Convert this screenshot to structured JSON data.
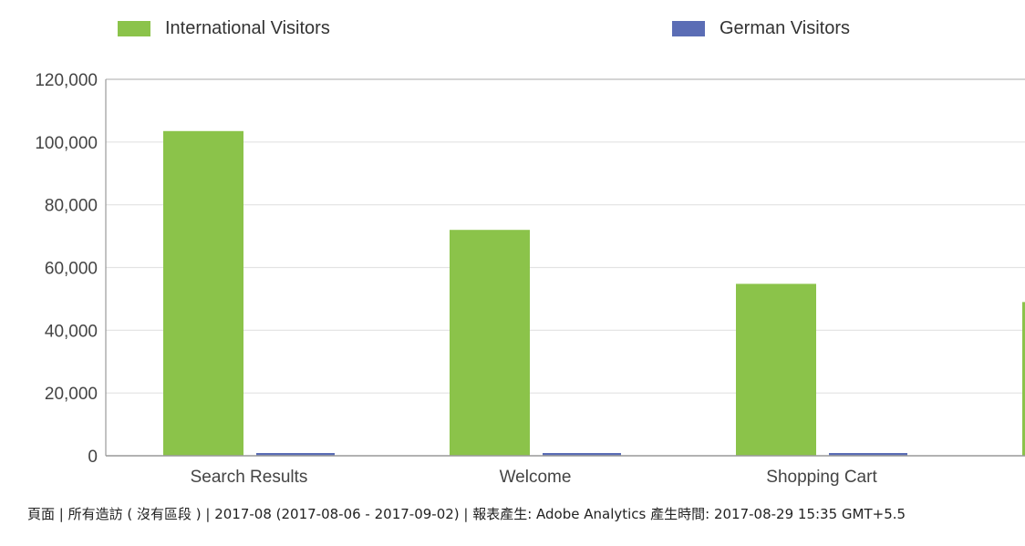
{
  "chart_data": {
    "type": "bar",
    "categories": [
      "Search Results",
      "Welcome",
      "Shopping Cart",
      ""
    ],
    "series": [
      {
        "name": "International Visitors",
        "color": "#8bc34a",
        "values": [
          103500,
          72000,
          54800,
          49000
        ]
      },
      {
        "name": "German Visitors",
        "color": "#5b6db5",
        "values": [
          700,
          600,
          600,
          600
        ]
      }
    ],
    "ylim": [
      0,
      120000
    ],
    "yticks": [
      0,
      20000,
      40000,
      60000,
      80000,
      100000,
      120000
    ],
    "ytick_labels": [
      "0",
      "20,000",
      "40,000",
      "60,000",
      "80,000",
      "100,000",
      "120,000"
    ],
    "grid": true,
    "legend_position": "top"
  },
  "footer": {
    "text": "頁面 | 所有造訪 ( 沒有區段 ) | 2017-08 (2017-08-06 - 2017-09-02) | 報表產生: Adobe Analytics 產生時間: 2017-08-29 15:35 GMT+5.5"
  }
}
